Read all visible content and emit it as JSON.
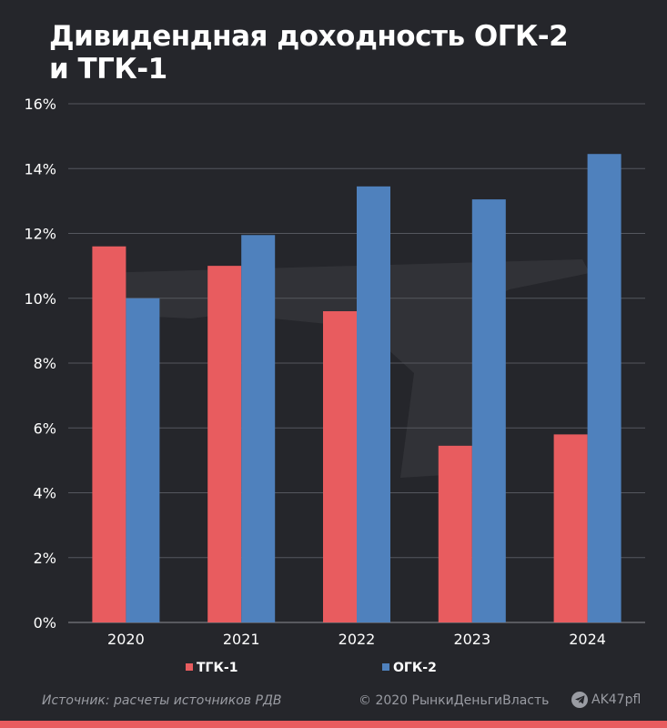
{
  "title": "Дивидендная доходность ОГК-2 и ТГК-1",
  "chart_data": {
    "type": "bar",
    "categories": [
      "2020",
      "2021",
      "2022",
      "2023",
      "2024"
    ],
    "series": [
      {
        "name": "ТГК-1",
        "color": "#e85c5f",
        "values": [
          11.6,
          11.0,
          9.6,
          5.45,
          5.8
        ]
      },
      {
        "name": "ОГК-2",
        "color": "#4f81bd",
        "values": [
          10.0,
          11.95,
          13.45,
          13.05,
          14.45
        ]
      }
    ],
    "yticks": [
      "0%",
      "2%",
      "4%",
      "6%",
      "8%",
      "10%",
      "12%",
      "14%",
      "16%"
    ],
    "ylim": [
      0,
      16
    ],
    "grid": true,
    "legend": "bottom"
  },
  "footer": {
    "source": "Источник: расчеты источников РДВ",
    "copyright": "© 2020  РынкиДеньгиВласть",
    "telegram": "AK47pfl"
  },
  "colors": {
    "background": "#25262b",
    "grid": "#55575e",
    "accent": "#e85c5f"
  },
  "icons": {
    "telegram": "telegram-icon",
    "watermark": "rifle-watermark"
  }
}
